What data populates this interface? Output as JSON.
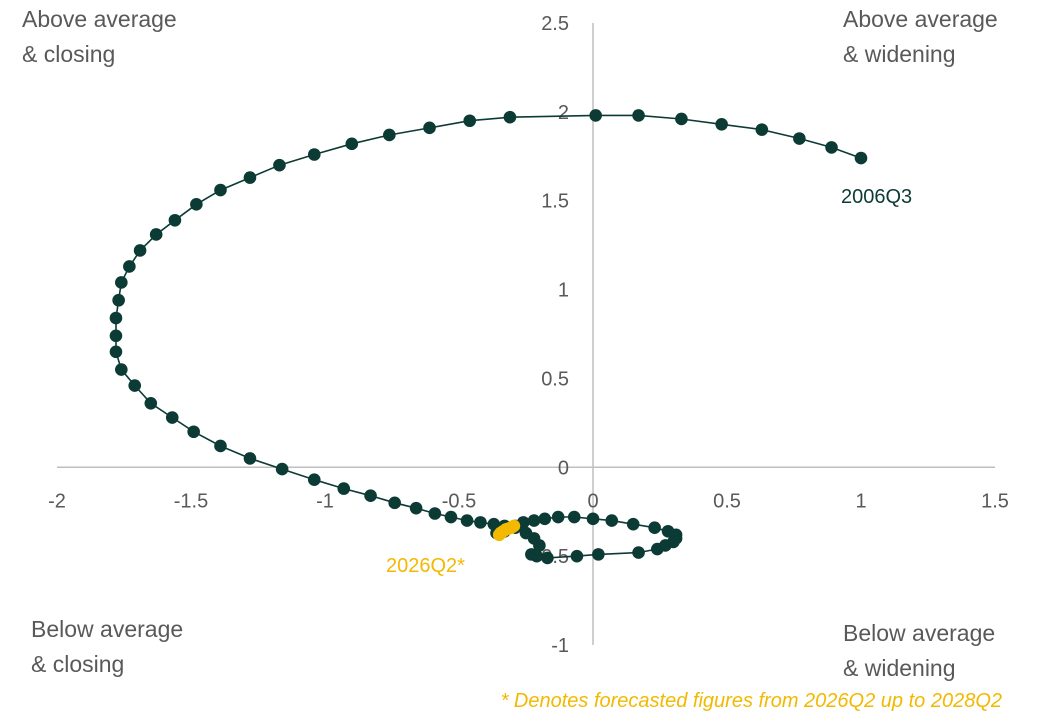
{
  "colors": {
    "history": "#0c3b35",
    "forecast": "#f2b900",
    "axis": "#bfbfbf",
    "text": "#595959"
  },
  "quadrants": {
    "top_left": "Above average\n& closing",
    "top_right": "Above average\n& widening",
    "bottom_left": "Below average\n& closing",
    "bottom_right": "Below average\n& widening"
  },
  "footnote": "* Denotes forecasted figures from 2026Q2 up to 2028Q2",
  "chart_data": {
    "type": "scatter",
    "xlim": [
      -2,
      1.5
    ],
    "ylim": [
      -1,
      2.5
    ],
    "x_ticks": [
      -2,
      -1.5,
      -1,
      -0.5,
      0,
      0.5,
      1,
      1.5
    ],
    "y_ticks": [
      -1,
      -0.5,
      0,
      0.5,
      1,
      1.5,
      2,
      2.5
    ],
    "x_tick_labels": [
      "-2",
      "-1.5",
      "-1",
      "-0.5",
      "0",
      "0.5",
      "1",
      "1.5"
    ],
    "y_tick_labels": [
      "-1",
      "-0.5",
      "0",
      "0.5",
      "1",
      "1.5",
      "2",
      "2.5"
    ],
    "grid": false,
    "start_label": "2006Q3",
    "end_label": "2026Q2*",
    "series": [
      {
        "points": [
          [
            1.0,
            1.74
          ],
          [
            0.89,
            1.8
          ],
          [
            0.77,
            1.85
          ],
          [
            0.63,
            1.9
          ],
          [
            0.48,
            1.93
          ],
          [
            0.33,
            1.96
          ],
          [
            0.17,
            1.98
          ],
          [
            0.01,
            1.98
          ],
          [
            -0.31,
            1.97
          ],
          [
            -0.46,
            1.95
          ],
          [
            -0.61,
            1.91
          ],
          [
            -0.76,
            1.87
          ],
          [
            -0.9,
            1.82
          ],
          [
            -1.04,
            1.76
          ],
          [
            -1.17,
            1.7
          ],
          [
            -1.28,
            1.63
          ],
          [
            -1.39,
            1.56
          ],
          [
            -1.48,
            1.48
          ],
          [
            -1.56,
            1.39
          ],
          [
            -1.63,
            1.31
          ],
          [
            -1.69,
            1.22
          ],
          [
            -1.73,
            1.13
          ],
          [
            -1.76,
            1.04
          ],
          [
            -1.77,
            0.94
          ],
          [
            -1.78,
            0.84
          ],
          [
            -1.78,
            0.74
          ],
          [
            -1.78,
            0.65
          ],
          [
            -1.76,
            0.55
          ],
          [
            -1.71,
            0.46
          ],
          [
            -1.65,
            0.36
          ],
          [
            -1.57,
            0.28
          ],
          [
            -1.49,
            0.2
          ],
          [
            -1.39,
            0.12
          ],
          [
            -1.28,
            0.05
          ],
          [
            -1.16,
            -0.01
          ],
          [
            -1.04,
            -0.07
          ],
          [
            -0.93,
            -0.12
          ],
          [
            -0.83,
            -0.16
          ],
          [
            -0.74,
            -0.2
          ],
          [
            -0.66,
            -0.23
          ],
          [
            -0.59,
            -0.26
          ],
          [
            -0.53,
            -0.28
          ],
          [
            -0.47,
            -0.3
          ],
          [
            -0.42,
            -0.31
          ],
          [
            -0.37,
            -0.32
          ],
          [
            -0.33,
            -0.33
          ],
          [
            -0.29,
            -0.34
          ],
          [
            -0.25,
            -0.37
          ],
          [
            -0.22,
            -0.4
          ],
          [
            -0.2,
            -0.44
          ],
          [
            -0.23,
            -0.49
          ],
          [
            -0.21,
            -0.5
          ],
          [
            -0.17,
            -0.51
          ],
          [
            -0.06,
            -0.5
          ],
          [
            0.02,
            -0.49
          ],
          [
            0.17,
            -0.48
          ],
          [
            0.24,
            -0.46
          ],
          [
            0.27,
            -0.44
          ],
          [
            0.3,
            -0.42
          ],
          [
            0.31,
            -0.4
          ],
          [
            0.31,
            -0.38
          ],
          [
            0.28,
            -0.36
          ],
          [
            0.23,
            -0.34
          ],
          [
            0.15,
            -0.32
          ],
          [
            0.07,
            -0.3
          ],
          [
            0.0,
            -0.29
          ],
          [
            -0.07,
            -0.28
          ],
          [
            -0.13,
            -0.28
          ],
          [
            -0.18,
            -0.29
          ],
          [
            -0.22,
            -0.3
          ],
          [
            -0.26,
            -0.31
          ],
          [
            -0.29,
            -0.33
          ],
          [
            -0.33,
            -0.36
          ],
          [
            -0.36,
            -0.37
          ]
        ]
      },
      {
        "points": [
          [
            -0.35,
            -0.38
          ],
          [
            -0.345,
            -0.37
          ],
          [
            -0.335,
            -0.36
          ],
          [
            -0.325,
            -0.35
          ],
          [
            -0.315,
            -0.345
          ],
          [
            -0.305,
            -0.34
          ],
          [
            -0.3,
            -0.335
          ],
          [
            -0.295,
            -0.33
          ]
        ]
      }
    ]
  }
}
